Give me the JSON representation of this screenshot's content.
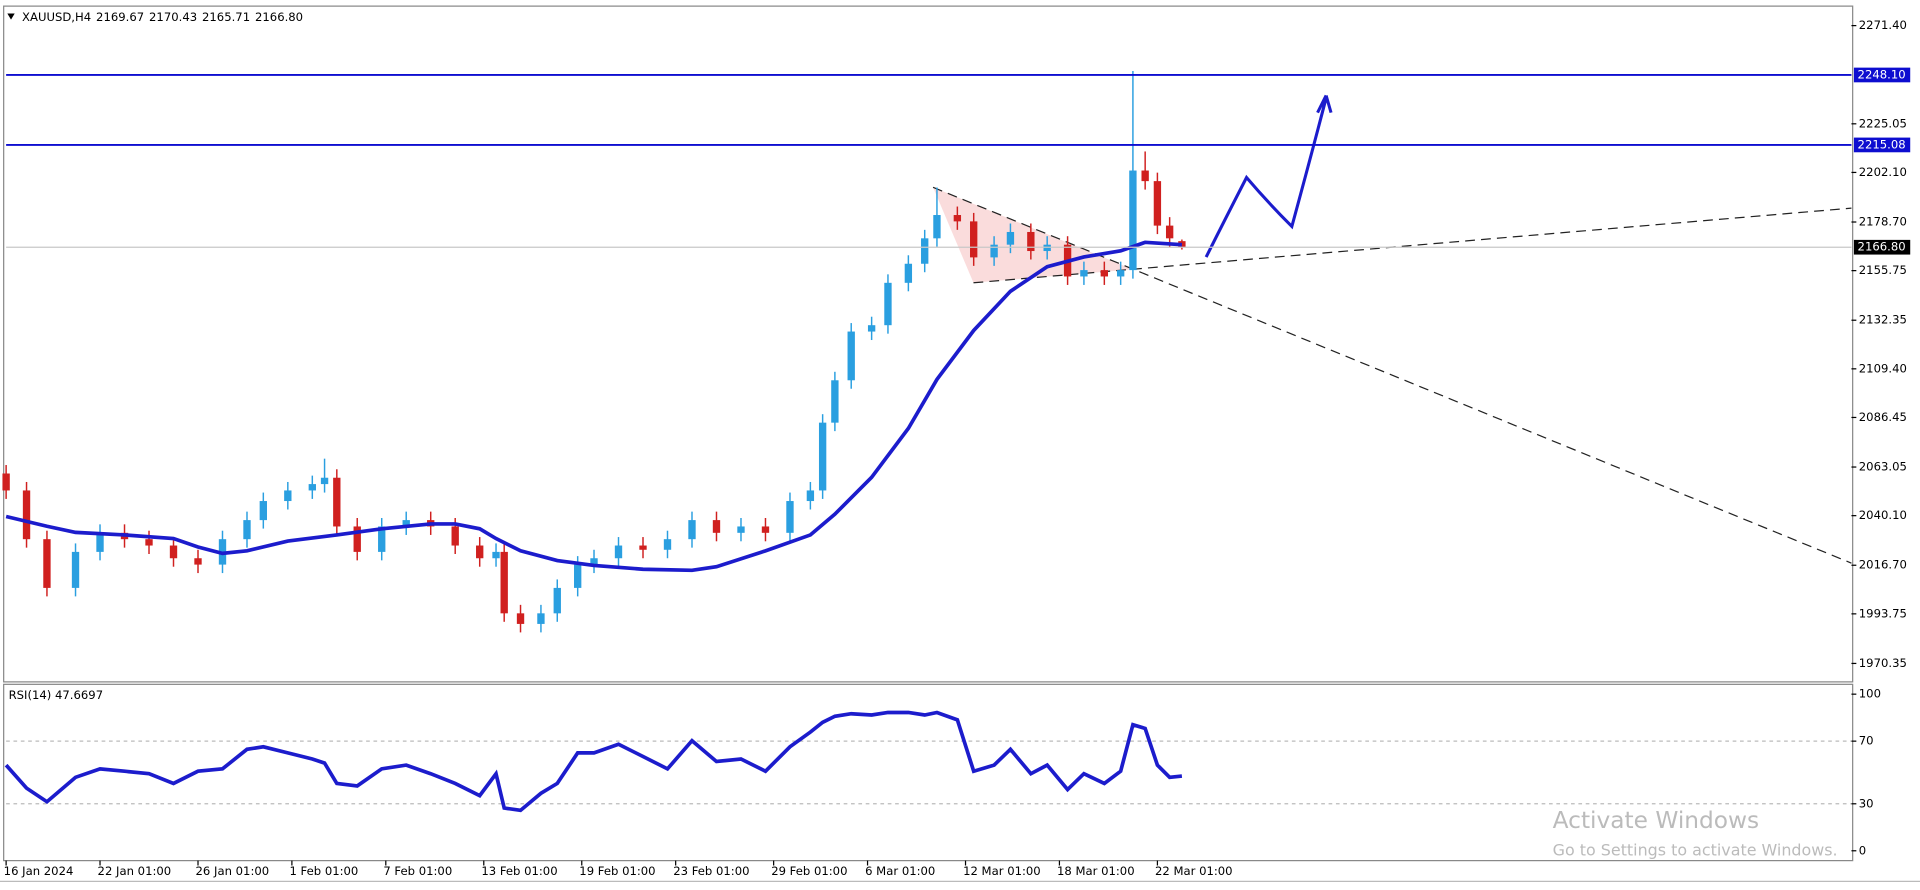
{
  "chart_data": [
    {
      "type": "candlestick",
      "title": "XAUUSD,H4",
      "ohlc_text": [
        "2169.67",
        "2170.43",
        "2165.71",
        "2166.80"
      ],
      "x": [
        0,
        5,
        10,
        17,
        23,
        29,
        35,
        41,
        47,
        53,
        59,
        63,
        69,
        75,
        78,
        81,
        86,
        92,
        98,
        104,
        110,
        116,
        120,
        122,
        126,
        131,
        135,
        140,
        144,
        150,
        156,
        162,
        168,
        174,
        180,
        186,
        192,
        197,
        200,
        203,
        207,
        212,
        216,
        221,
        225,
        228,
        233,
        237,
        242,
        246,
        251,
        255,
        260,
        264,
        269,
        273,
        276,
        279,
        282,
        285,
        288
      ],
      "open": [
        2060,
        2052,
        2029,
        2006,
        2023,
        2032,
        2029,
        2026,
        2020,
        2017,
        2029,
        2038,
        2047,
        2052,
        2055,
        2058,
        2035,
        2023,
        2035,
        2038,
        2035,
        2026,
        2020,
        2023,
        1994,
        1989,
        1994,
        2006,
        2017,
        2020,
        2026,
        2024,
        2029,
        2038,
        2032,
        2035,
        2032,
        2047,
        2052,
        2084,
        2104,
        2127,
        2130,
        2150,
        2159,
        2171,
        2182,
        2179,
        2162,
        2168,
        2174,
        2165,
        2168,
        2153,
        2156,
        2153,
        2156,
        2203,
        2198,
        2177,
        2169.67
      ],
      "high": [
        2064,
        2056,
        2033,
        2027,
        2036,
        2036,
        2033,
        2030,
        2024,
        2033,
        2042,
        2051,
        2056,
        2059,
        2067,
        2062,
        2039,
        2039,
        2042,
        2042,
        2039,
        2030,
        2027,
        2027,
        1998,
        1998,
        2010,
        2021,
        2024,
        2030,
        2030,
        2033,
        2042,
        2042,
        2039,
        2039,
        2051,
        2056,
        2088,
        2108,
        2131,
        2134,
        2154,
        2163,
        2175,
        2195,
        2186,
        2183,
        2172,
        2178,
        2178,
        2172,
        2172,
        2160,
        2160,
        2160,
        2250,
        2212,
        2202,
        2181,
        2170.43
      ],
      "low": [
        2048,
        2025,
        2002,
        2002,
        2019,
        2025,
        2022,
        2016,
        2013,
        2013,
        2025,
        2034,
        2043,
        2048,
        2051,
        2031,
        2019,
        2019,
        2031,
        2031,
        2022,
        2016,
        2016,
        1990,
        1985,
        1985,
        1990,
        2002,
        2013,
        2016,
        2020,
        2020,
        2025,
        2028,
        2028,
        2028,
        2028,
        2043,
        2048,
        2080,
        2100,
        2123,
        2126,
        2146,
        2155,
        2167,
        2175,
        2158,
        2158,
        2164,
        2161,
        2161,
        2149,
        2149,
        2149,
        2149,
        2152,
        2194,
        2173,
        2167,
        2165.71
      ],
      "close": [
        2052,
        2029,
        2006,
        2023,
        2032,
        2029,
        2026,
        2020,
        2017,
        2029,
        2038,
        2047,
        2052,
        2055,
        2058,
        2035,
        2023,
        2035,
        2038,
        2035,
        2026,
        2020,
        2023,
        1994,
        1989,
        1994,
        2006,
        2017,
        2020,
        2026,
        2024,
        2029,
        2038,
        2032,
        2035,
        2032,
        2047,
        2052,
        2084,
        2104,
        2127,
        2130,
        2150,
        2159,
        2171,
        2182,
        2179,
        2162,
        2168,
        2174,
        2165,
        2168,
        2153,
        2156,
        2153,
        2156,
        2203,
        2198,
        2177,
        2171,
        2166.8
      ],
      "up_color": "#2a9fe0",
      "down_color": "#d0201f",
      "ma": {
        "color": "#1c1ccc",
        "x": [
          0,
          10,
          17,
          29,
          41,
          47,
          53,
          59,
          69,
          81,
          92,
          104,
          110,
          116,
          120,
          126,
          135,
          144,
          156,
          168,
          174,
          186,
          197,
          203,
          212,
          221,
          228,
          237,
          246,
          255,
          264,
          273,
          279,
          288
        ],
        "values": [
          2039.7,
          2035.1,
          2032.2,
          2031.0,
          2029.3,
          2025.3,
          2022.3,
          2023.5,
          2028.1,
          2031.0,
          2033.9,
          2036.2,
          2036.2,
          2033.9,
          2029.3,
          2023.5,
          2018.9,
          2016.6,
          2014.8,
          2014.3,
          2016.0,
          2023.5,
          2031.0,
          2040.8,
          2058.2,
          2081.3,
          2104.4,
          2127.5,
          2146.0,
          2157.6,
          2162.2,
          2165.1,
          2169.1,
          2168.0
        ]
      },
      "levels": [
        {
          "value": 2248.1,
          "label": "2248.10"
        },
        {
          "value": 2215.08,
          "label": "2215.08"
        }
      ],
      "level_color": "#0d0dd0",
      "last_price": {
        "value": 2166.8,
        "label": "2166.80"
      },
      "xlim": [
        0,
        452
      ],
      "ylim": [
        1962.8,
        2280.6
      ],
      "yticks": [
        {
          "value": 1970.35,
          "label": "1970.35"
        },
        {
          "value": 1993.75,
          "label": "1993.75"
        },
        {
          "value": 2016.7,
          "label": "2016.70"
        },
        {
          "value": 2040.1,
          "label": "2040.10"
        },
        {
          "value": 2063.05,
          "label": "2063.05"
        },
        {
          "value": 2086.45,
          "label": "2086.45"
        },
        {
          "value": 2109.4,
          "label": "2109.40"
        },
        {
          "value": 2132.35,
          "label": "2132.35"
        },
        {
          "value": 2155.75,
          "label": "2155.75"
        },
        {
          "value": 2178.7,
          "label": "2178.70"
        },
        {
          "value": 2202.1,
          "label": "2202.10"
        },
        {
          "value": 2225.05,
          "label": "2225.05"
        },
        {
          "value": 2271.4,
          "label": "2271.40"
        }
      ],
      "xticks": [
        {
          "value": 0,
          "label": "16 Jan 2024"
        },
        {
          "value": 23,
          "label": "22 Jan 01:00"
        },
        {
          "value": 47,
          "label": "26 Jan 01:00"
        },
        {
          "value": 70,
          "label": "1 Feb 01:00"
        },
        {
          "value": 93,
          "label": "7 Feb 01:00"
        },
        {
          "value": 117,
          "label": "13 Feb 01:00"
        },
        {
          "value": 141,
          "label": "19 Feb 01:00"
        },
        {
          "value": 164,
          "label": "23 Feb 01:00"
        },
        {
          "value": 188,
          "label": "29 Feb 01:00"
        },
        {
          "value": 211,
          "label": "6 Mar 01:00"
        },
        {
          "value": 235,
          "label": "12 Mar 01:00"
        },
        {
          "value": 258,
          "label": "18 Mar 01:00"
        },
        {
          "value": 282,
          "label": "22 Mar 01:00"
        }
      ]
    },
    {
      "type": "line",
      "title": "RSI(14) 47.6697",
      "color": "#1c1ccc",
      "values": [
        54.7,
        40,
        31.3,
        46.9,
        52.3,
        50.8,
        49.2,
        43,
        50.8,
        52.3,
        64.8,
        66.4,
        62.5,
        58.6,
        56,
        43,
        41.4,
        52.3,
        54.7,
        49.2,
        43,
        35.2,
        49.2,
        27.3,
        25.8,
        36.7,
        43,
        62.5,
        62.5,
        68,
        60.2,
        52.3,
        70.3,
        57,
        58.6,
        50.8,
        66.4,
        75.8,
        82,
        85.9,
        87.5,
        86.7,
        88.3,
        88.3,
        86.7,
        88.3,
        83.6,
        50.8,
        54.7,
        64.8,
        49.2,
        54.7,
        39.1,
        49.2,
        43,
        50.8,
        80.5,
        78.1,
        54.7,
        46.9,
        47.7
      ],
      "ylim": [
        -5.5,
        105.5
      ],
      "yticks": [
        0,
        30,
        70,
        100
      ],
      "levels": [
        30,
        70
      ]
    }
  ],
  "watermark": {
    "title": "Activate Windows",
    "subtitle": "Go to Settings to activate Windows."
  }
}
